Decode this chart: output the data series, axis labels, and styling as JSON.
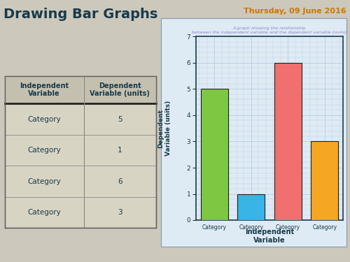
{
  "title_left": "Drawing Bar Graphs",
  "title_right": "Thursday, 09 June 2016",
  "categories": [
    "Category",
    "Category",
    "Category",
    "Category"
  ],
  "values": [
    5,
    1,
    6,
    3
  ],
  "bar_colors": [
    "#7dc742",
    "#39b4e6",
    "#f07070",
    "#f5a623"
  ],
  "xlabel_line1": "Independent",
  "xlabel_line2": "Variable",
  "ylabel_line1": "Dependent",
  "ylabel_line2": "Variable (units)",
  "ylim": [
    0,
    7
  ],
  "yticks": [
    0,
    1,
    2,
    3,
    4,
    5,
    6
  ],
  "chart_title_line1": "A graph showing the relationship",
  "chart_title_line2": "between the independent variable and the dependent variable (units)",
  "table_header_col1": "Independent\nVariable",
  "table_header_col2": "Dependent\nVariable (units)",
  "table_rows": [
    [
      "Category",
      "5"
    ],
    [
      "Category",
      "1"
    ],
    [
      "Category",
      "6"
    ],
    [
      "Category",
      "3"
    ]
  ],
  "bg_color": "#ccc8bc",
  "chart_bg": "#deeaf4",
  "chart_border_bg": "#c8d8e8",
  "grid_color": "#b0c8dc",
  "table_bg": "#d8d4c4",
  "table_header_bg": "#c4c0b0",
  "left_panel_color": "#ccc8bc",
  "title_left_color": "#1a3a4a",
  "title_right_color": "#cc7700",
  "table_text_color": "#1a3a4a",
  "chart_title_color": "#8888cc",
  "axis_label_color": "#1a3a4a",
  "tick_color": "#1a3a4a",
  "bar_edge_color": "#222222"
}
